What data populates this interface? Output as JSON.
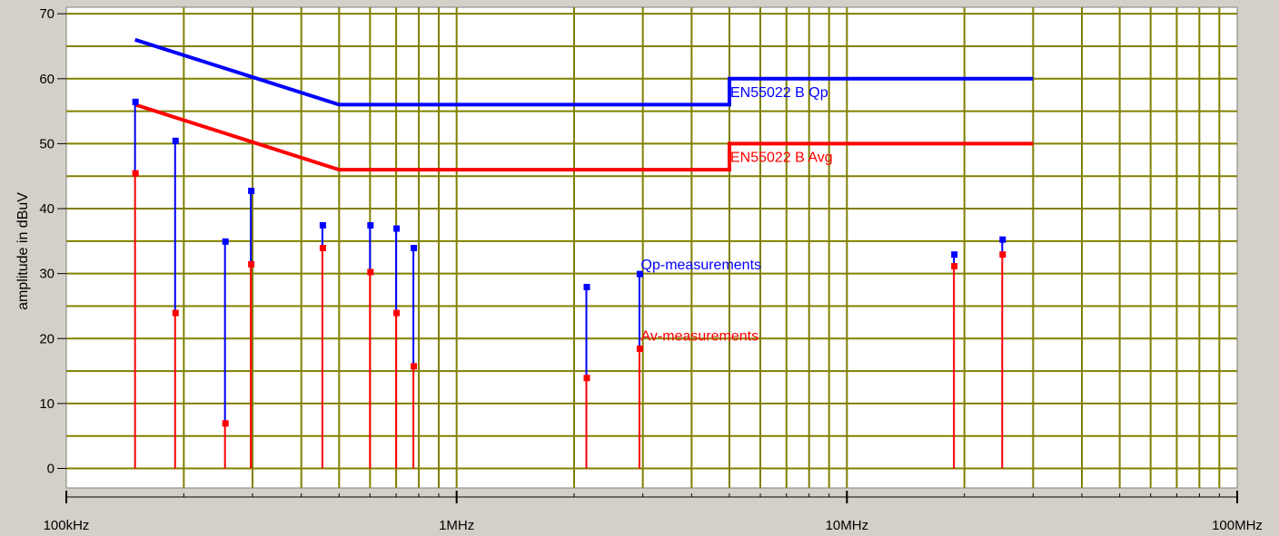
{
  "chart_data": {
    "type": "scatter",
    "title": "",
    "xlabel": "",
    "ylabel": "amplitude in dBuV",
    "x_scale": "log",
    "x_unit": "Hz",
    "xlim": [
      100000,
      100000000
    ],
    "ylim": [
      -3,
      71
    ],
    "x_ticks": [
      {
        "value": 100000,
        "label": "100kHz"
      },
      {
        "value": 1000000,
        "label": "1MHz"
      },
      {
        "value": 10000000,
        "label": "10MHz"
      },
      {
        "value": 100000000,
        "label": "100MHz"
      }
    ],
    "y_ticks": [
      0,
      10,
      20,
      30,
      40,
      50,
      60,
      70
    ],
    "grid": true,
    "colors": {
      "background": "#d4d0c8",
      "plot_background": "#ffffff",
      "grid": "#808000",
      "qp": "#0000ff",
      "avg": "#ff0000"
    },
    "limit_lines": [
      {
        "name": "EN55022 B Qp",
        "color": "#0000ff",
        "points": [
          [
            150000,
            66
          ],
          [
            500000,
            56
          ],
          [
            5000000,
            56
          ],
          [
            5000000,
            60
          ],
          [
            30000000,
            60
          ]
        ]
      },
      {
        "name": "EN55022 B Avg",
        "color": "#ff0000",
        "points": [
          [
            150000,
            56
          ],
          [
            500000,
            46
          ],
          [
            5000000,
            46
          ],
          [
            5000000,
            50
          ],
          [
            30000000,
            50
          ]
        ]
      }
    ],
    "measurements": [
      {
        "f": 150000,
        "qp": 56.5,
        "av": 45.5
      },
      {
        "f": 190000,
        "qp": 50.5,
        "av": 24
      },
      {
        "f": 255000,
        "qp": 35,
        "av": 7
      },
      {
        "f": 297000,
        "qp": 42.8,
        "av": 31.5
      },
      {
        "f": 453000,
        "qp": 37.5,
        "av": 34
      },
      {
        "f": 600000,
        "qp": 37.5,
        "av": 30.3
      },
      {
        "f": 700000,
        "qp": 37,
        "av": 24
      },
      {
        "f": 775000,
        "qp": 34,
        "av": 15.8
      },
      {
        "f": 2150000,
        "qp": 28,
        "av": 14
      },
      {
        "f": 2940000,
        "qp": 30,
        "av": 18.5
      },
      {
        "f": 18800000,
        "qp": 33,
        "av": 31.2
      },
      {
        "f": 25000000,
        "qp": 35.3,
        "av": 33
      }
    ],
    "annotations": [
      {
        "text": "EN55022 B Qp",
        "color": "#0000ff",
        "x": 5000000,
        "y": 58
      },
      {
        "text": "EN55022 B Avg",
        "color": "#ff0000",
        "x": 5000000,
        "y": 48
      },
      {
        "text": "Qp-measurements",
        "color": "#0000ff",
        "x": 2950000,
        "y": 31.5
      },
      {
        "text": "Av-measurements",
        "color": "#ff0000",
        "x": 2950000,
        "y": 20.5
      }
    ]
  }
}
